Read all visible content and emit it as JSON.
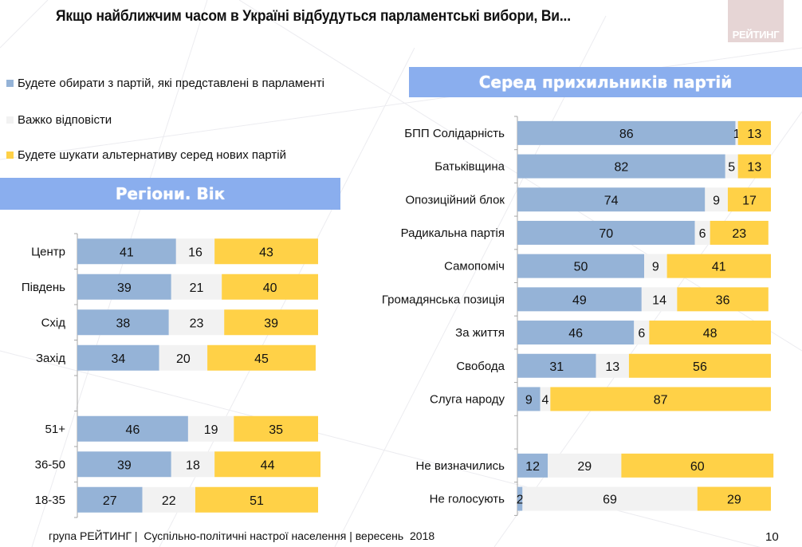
{
  "title": "Якщо найближчим часом в Україні відбудуться парламентські вибори, Ви...",
  "logo": "РЕЙТИНГ",
  "colors": {
    "parliament": "#95b3d7",
    "hard_to_say": "#f2f2f2",
    "new_parties": "#ffd147",
    "banner": "#8aaeee"
  },
  "legend": [
    {
      "label": "Будете обирати з партій, які представлені в парламенті",
      "color": "#95b3d7"
    },
    {
      "label": "Важко відповісти",
      "color": "#f2f2f2"
    },
    {
      "label": "Будете шукати альтернативу серед нових партій",
      "color": "#ffd147"
    }
  ],
  "banners": {
    "left": "Регіони. Вік",
    "right": "Серед прихильників партій"
  },
  "footer": "група РЕЙТИНГ |  Суспільно-політичні настрої населення | вересень  2018",
  "page_number": "10",
  "chart_data": [
    {
      "type": "bar",
      "orientation": "horizontal",
      "stacked": true,
      "title": "Регіони. Вік",
      "categories": [
        "Центр",
        "Південь",
        "Схід",
        "Захід",
        "",
        "51+",
        "36-50",
        "18-35"
      ],
      "series": [
        {
          "name": "Будете обирати з партій, які представлені в парламенті",
          "values": [
            41,
            39,
            38,
            34,
            null,
            46,
            39,
            27
          ]
        },
        {
          "name": "Важко відповісти",
          "values": [
            16,
            21,
            23,
            20,
            null,
            19,
            18,
            22
          ]
        },
        {
          "name": "Будете шукати альтернативу серед нових партій",
          "values": [
            43,
            40,
            39,
            45,
            null,
            35,
            44,
            51
          ]
        }
      ],
      "xlim": [
        0,
        100
      ],
      "grid": false,
      "data_labels": true
    },
    {
      "type": "bar",
      "orientation": "horizontal",
      "stacked": true,
      "title": "Серед прихильників партій",
      "categories": [
        "БПП Солідарність",
        "Батьківщина",
        "Опозиційний блок",
        "Радикальна партія",
        "Самопоміч",
        "Громадянська позиція",
        "За життя",
        "Свобода",
        "Слуга народу",
        "",
        "Не визначились",
        "Не голосують"
      ],
      "series": [
        {
          "name": "Будете обирати з партій, які представлені в парламенті",
          "values": [
            86,
            82,
            74,
            70,
            50,
            49,
            46,
            31,
            9,
            null,
            12,
            2
          ]
        },
        {
          "name": "Важко відповісти",
          "values": [
            1,
            5,
            9,
            6,
            9,
            14,
            6,
            13,
            4,
            null,
            29,
            69
          ]
        },
        {
          "name": "Будете шукати альтернативу серед нових партій",
          "values": [
            13,
            13,
            17,
            23,
            41,
            36,
            48,
            56,
            87,
            null,
            60,
            29
          ]
        }
      ],
      "xlim": [
        0,
        100
      ],
      "grid": false,
      "data_labels": true
    }
  ]
}
